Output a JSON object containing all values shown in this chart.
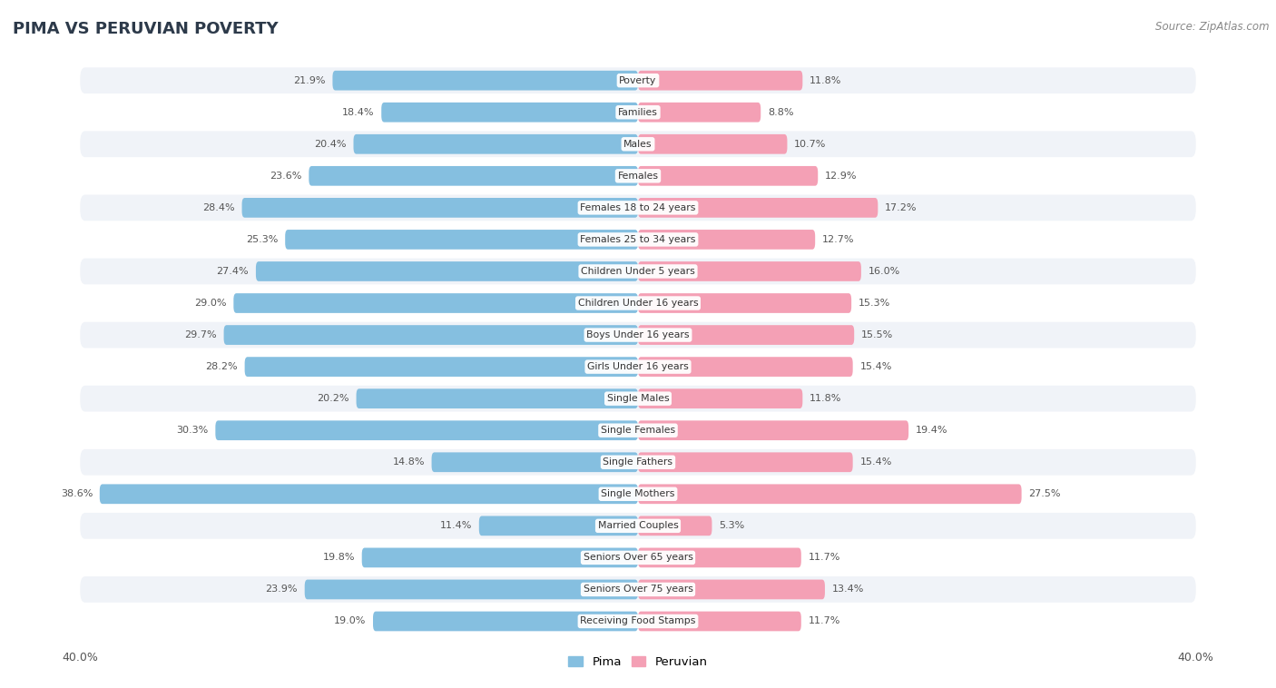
{
  "title": "PIMA VS PERUVIAN POVERTY",
  "source": "Source: ZipAtlas.com",
  "categories": [
    "Poverty",
    "Families",
    "Males",
    "Females",
    "Females 18 to 24 years",
    "Females 25 to 34 years",
    "Children Under 5 years",
    "Children Under 16 years",
    "Boys Under 16 years",
    "Girls Under 16 years",
    "Single Males",
    "Single Females",
    "Single Fathers",
    "Single Mothers",
    "Married Couples",
    "Seniors Over 65 years",
    "Seniors Over 75 years",
    "Receiving Food Stamps"
  ],
  "pima_values": [
    21.9,
    18.4,
    20.4,
    23.6,
    28.4,
    25.3,
    27.4,
    29.0,
    29.7,
    28.2,
    20.2,
    30.3,
    14.8,
    38.6,
    11.4,
    19.8,
    23.9,
    19.0
  ],
  "peruvian_values": [
    11.8,
    8.8,
    10.7,
    12.9,
    17.2,
    12.7,
    16.0,
    15.3,
    15.5,
    15.4,
    11.8,
    19.4,
    15.4,
    27.5,
    5.3,
    11.7,
    13.4,
    11.7
  ],
  "pima_color": "#85bfe0",
  "peruvian_color": "#f4a0b5",
  "pima_label": "Pima",
  "peruvian_label": "Peruvian",
  "axis_max": 40.0,
  "background_color": "#ffffff",
  "row_color_odd": "#f0f3f8",
  "row_color_even": "#ffffff",
  "label_bg_color": "#ffffff",
  "title_color": "#2d3a4a",
  "source_color": "#888888",
  "value_color": "#555555"
}
